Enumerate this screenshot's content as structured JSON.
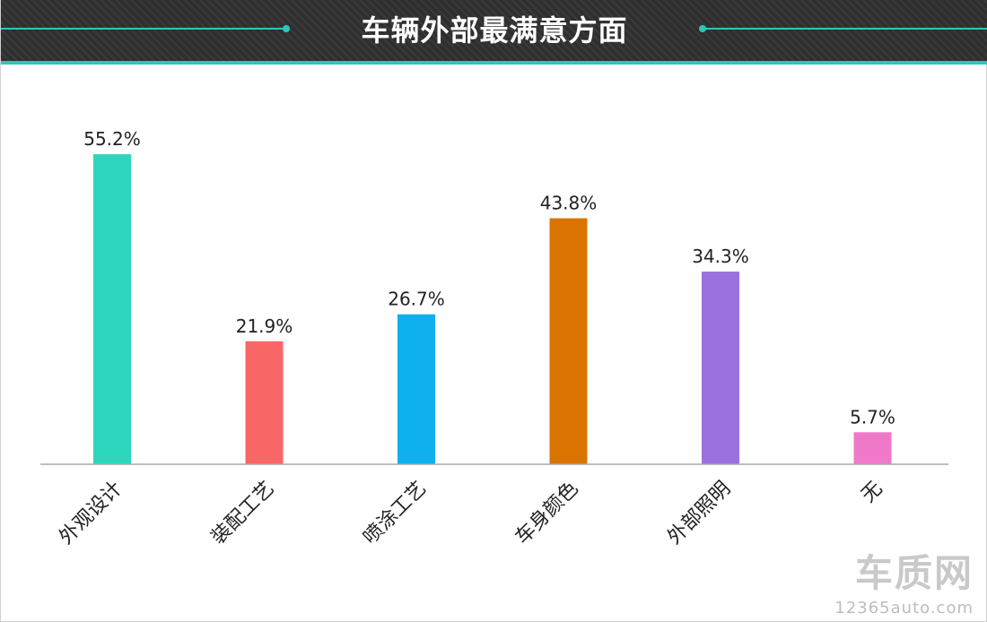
{
  "header": {
    "title": "车辆外部最满意方面"
  },
  "watermark": {
    "brand": "车质网",
    "site": "12365auto.com"
  },
  "colors": {
    "header_bg": "#2f2f2f",
    "accent": "#2fc6b7"
  },
  "chart_data": {
    "type": "bar",
    "title": "车辆外部最满意方面",
    "xlabel": "",
    "ylabel": "",
    "ylim": [
      0,
      60
    ],
    "grid": false,
    "legend": "none",
    "categories": [
      "外观设计",
      "装配工艺",
      "喷涂工艺",
      "车身颜色",
      "外部照明",
      "无"
    ],
    "values": [
      55.2,
      21.9,
      26.7,
      43.8,
      34.3,
      5.7
    ],
    "data_labels": [
      "55.2%",
      "21.9%",
      "26.7%",
      "43.8%",
      "34.3%",
      "5.7%"
    ],
    "bar_colors": [
      "#2fd6be",
      "#f96666",
      "#0fb0ee",
      "#d97400",
      "#9b71df",
      "#ef79c8"
    ]
  }
}
